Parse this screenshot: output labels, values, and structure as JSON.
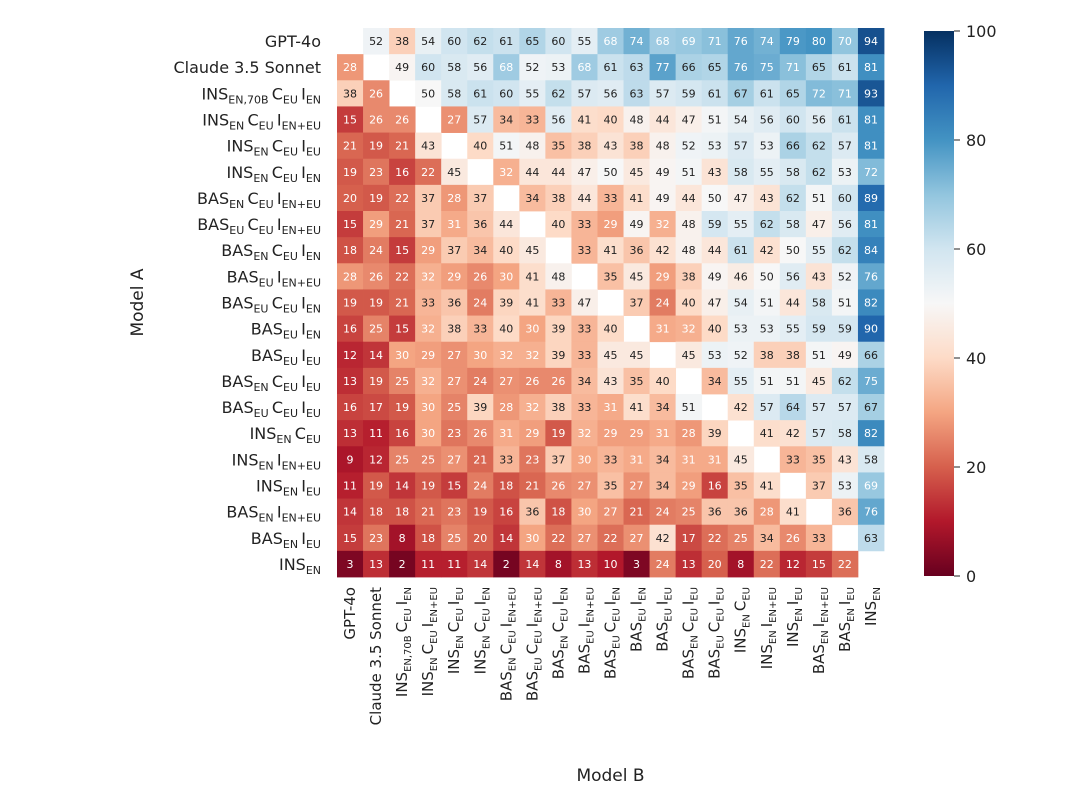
{
  "chart_data": {
    "type": "heatmap",
    "xlabel": "Model B",
    "ylabel": "Model A",
    "colorbar": {
      "min": 0,
      "max": 100,
      "ticks": [
        0,
        20,
        40,
        60,
        80,
        100
      ],
      "colormap": "RdBu"
    },
    "colors": {
      "low": "#67001f",
      "mid": "#f7f7f7",
      "high": "#053061"
    },
    "models": [
      {
        "base": "GPT-4o",
        "plain": true
      },
      {
        "base": "Claude 3.5 Sonnet",
        "plain": true
      },
      {
        "base": "INS",
        "parts": [
          [
            "EN,70B",
            "C"
          ],
          [
            "EU",
            "I"
          ],
          [
            "EN",
            ""
          ]
        ]
      },
      {
        "base": "INS",
        "parts": [
          [
            "EN",
            "C"
          ],
          [
            "EU",
            "I"
          ],
          [
            "EN+EU",
            ""
          ]
        ]
      },
      {
        "base": "INS",
        "parts": [
          [
            "EN",
            "C"
          ],
          [
            "EU",
            "I"
          ],
          [
            "EU",
            ""
          ]
        ]
      },
      {
        "base": "INS",
        "parts": [
          [
            "EN",
            "C"
          ],
          [
            "EU",
            "I"
          ],
          [
            "EN",
            ""
          ]
        ]
      },
      {
        "base": "BAS",
        "parts": [
          [
            "EN",
            "C"
          ],
          [
            "EU",
            "I"
          ],
          [
            "EN+EU",
            ""
          ]
        ]
      },
      {
        "base": "BAS",
        "parts": [
          [
            "EU",
            "C"
          ],
          [
            "EU",
            "I"
          ],
          [
            "EN+EU",
            ""
          ]
        ]
      },
      {
        "base": "BAS",
        "parts": [
          [
            "EN",
            "C"
          ],
          [
            "EU",
            "I"
          ],
          [
            "EN",
            ""
          ]
        ]
      },
      {
        "base": "BAS",
        "parts": [
          [
            "EU",
            "I"
          ],
          [
            "EN+EU",
            ""
          ]
        ]
      },
      {
        "base": "BAS",
        "parts": [
          [
            "EU",
            "C"
          ],
          [
            "EU",
            "I"
          ],
          [
            "EN",
            ""
          ]
        ]
      },
      {
        "base": "BAS",
        "parts": [
          [
            "EU",
            "I"
          ],
          [
            "EN",
            ""
          ]
        ]
      },
      {
        "base": "BAS",
        "parts": [
          [
            "EU",
            "I"
          ],
          [
            "EU",
            ""
          ]
        ]
      },
      {
        "base": "BAS",
        "parts": [
          [
            "EN",
            "C"
          ],
          [
            "EU",
            "I"
          ],
          [
            "EU",
            ""
          ]
        ]
      },
      {
        "base": "BAS",
        "parts": [
          [
            "EU",
            "C"
          ],
          [
            "EU",
            "I"
          ],
          [
            "EU",
            ""
          ]
        ]
      },
      {
        "base": "INS",
        "parts": [
          [
            "EN",
            "C"
          ],
          [
            "EU",
            ""
          ]
        ]
      },
      {
        "base": "INS",
        "parts": [
          [
            "EN",
            "I"
          ],
          [
            "EN+EU",
            ""
          ]
        ]
      },
      {
        "base": "INS",
        "parts": [
          [
            "EN",
            "I"
          ],
          [
            "EU",
            ""
          ]
        ]
      },
      {
        "base": "BAS",
        "parts": [
          [
            "EN",
            "I"
          ],
          [
            "EN+EU",
            ""
          ]
        ]
      },
      {
        "base": "BAS",
        "parts": [
          [
            "EN",
            "I"
          ],
          [
            "EU",
            ""
          ]
        ]
      },
      {
        "base": "INS",
        "parts": [
          [
            "EN",
            ""
          ]
        ]
      }
    ],
    "values": [
      [
        null,
        52,
        38,
        54,
        60,
        62,
        61,
        65,
        60,
        55,
        68,
        74,
        68,
        69,
        71,
        76,
        74,
        79,
        80,
        70,
        94
      ],
      [
        28,
        null,
        49,
        60,
        58,
        56,
        68,
        52,
        53,
        68,
        61,
        63,
        77,
        66,
        65,
        76,
        75,
        71,
        65,
        61,
        81
      ],
      [
        38,
        26,
        null,
        50,
        58,
        61,
        60,
        55,
        62,
        57,
        56,
        63,
        57,
        59,
        61,
        67,
        61,
        65,
        72,
        71,
        93
      ],
      [
        15,
        26,
        26,
        null,
        27,
        57,
        34,
        33,
        56,
        41,
        40,
        48,
        44,
        47,
        51,
        54,
        56,
        60,
        56,
        61,
        81
      ],
      [
        21,
        19,
        21,
        43,
        null,
        40,
        51,
        48,
        35,
        38,
        43,
        38,
        48,
        52,
        53,
        57,
        53,
        66,
        62,
        57,
        81
      ],
      [
        19,
        23,
        16,
        22,
        45,
        null,
        32,
        44,
        44,
        47,
        50,
        45,
        49,
        51,
        43,
        58,
        55,
        58,
        62,
        53,
        72
      ],
      [
        20,
        19,
        22,
        37,
        28,
        37,
        null,
        34,
        38,
        44,
        33,
        41,
        49,
        44,
        50,
        47,
        43,
        62,
        51,
        60,
        89
      ],
      [
        15,
        29,
        21,
        37,
        31,
        36,
        44,
        null,
        40,
        33,
        29,
        49,
        32,
        48,
        59,
        55,
        62,
        58,
        47,
        56,
        81
      ],
      [
        18,
        24,
        15,
        29,
        37,
        34,
        40,
        45,
        null,
        33,
        41,
        36,
        42,
        48,
        44,
        61,
        42,
        50,
        55,
        62,
        84
      ],
      [
        28,
        26,
        22,
        32,
        29,
        26,
        30,
        41,
        48,
        null,
        35,
        45,
        29,
        38,
        49,
        46,
        50,
        56,
        43,
        52,
        76
      ],
      [
        19,
        19,
        21,
        33,
        36,
        24,
        39,
        41,
        33,
        47,
        null,
        37,
        24,
        40,
        47,
        54,
        51,
        44,
        58,
        51,
        82
      ],
      [
        16,
        25,
        15,
        32,
        38,
        33,
        40,
        30,
        39,
        33,
        40,
        null,
        31,
        32,
        40,
        53,
        53,
        55,
        59,
        59,
        90
      ],
      [
        12,
        14,
        30,
        29,
        27,
        30,
        32,
        32,
        39,
        33,
        45,
        45,
        null,
        45,
        53,
        52,
        38,
        38,
        51,
        49,
        66
      ],
      [
        13,
        19,
        25,
        32,
        27,
        24,
        27,
        26,
        26,
        34,
        43,
        35,
        40,
        null,
        34,
        55,
        51,
        51,
        45,
        62,
        75
      ],
      [
        16,
        17,
        19,
        30,
        25,
        39,
        28,
        32,
        38,
        33,
        31,
        41,
        34,
        51,
        null,
        42,
        57,
        64,
        57,
        57,
        67
      ],
      [
        13,
        11,
        16,
        30,
        23,
        26,
        31,
        29,
        19,
        32,
        29,
        29,
        31,
        28,
        39,
        null,
        41,
        42,
        57,
        58,
        82
      ],
      [
        9,
        12,
        25,
        25,
        27,
        21,
        33,
        23,
        37,
        30,
        33,
        31,
        34,
        31,
        31,
        45,
        null,
        33,
        35,
        43,
        58
      ],
      [
        11,
        19,
        14,
        19,
        15,
        24,
        18,
        21,
        26,
        27,
        35,
        27,
        34,
        29,
        16,
        35,
        41,
        null,
        37,
        53,
        69
      ],
      [
        14,
        18,
        18,
        21,
        23,
        19,
        16,
        36,
        18,
        30,
        27,
        21,
        24,
        25,
        36,
        36,
        28,
        41,
        null,
        36,
        76
      ],
      [
        15,
        23,
        8,
        18,
        25,
        20,
        14,
        30,
        22,
        27,
        22,
        27,
        42,
        17,
        22,
        25,
        34,
        26,
        33,
        null,
        63
      ],
      [
        3,
        13,
        2,
        11,
        11,
        14,
        2,
        14,
        8,
        13,
        10,
        3,
        24,
        13,
        20,
        8,
        22,
        12,
        15,
        22,
        null
      ]
    ]
  }
}
